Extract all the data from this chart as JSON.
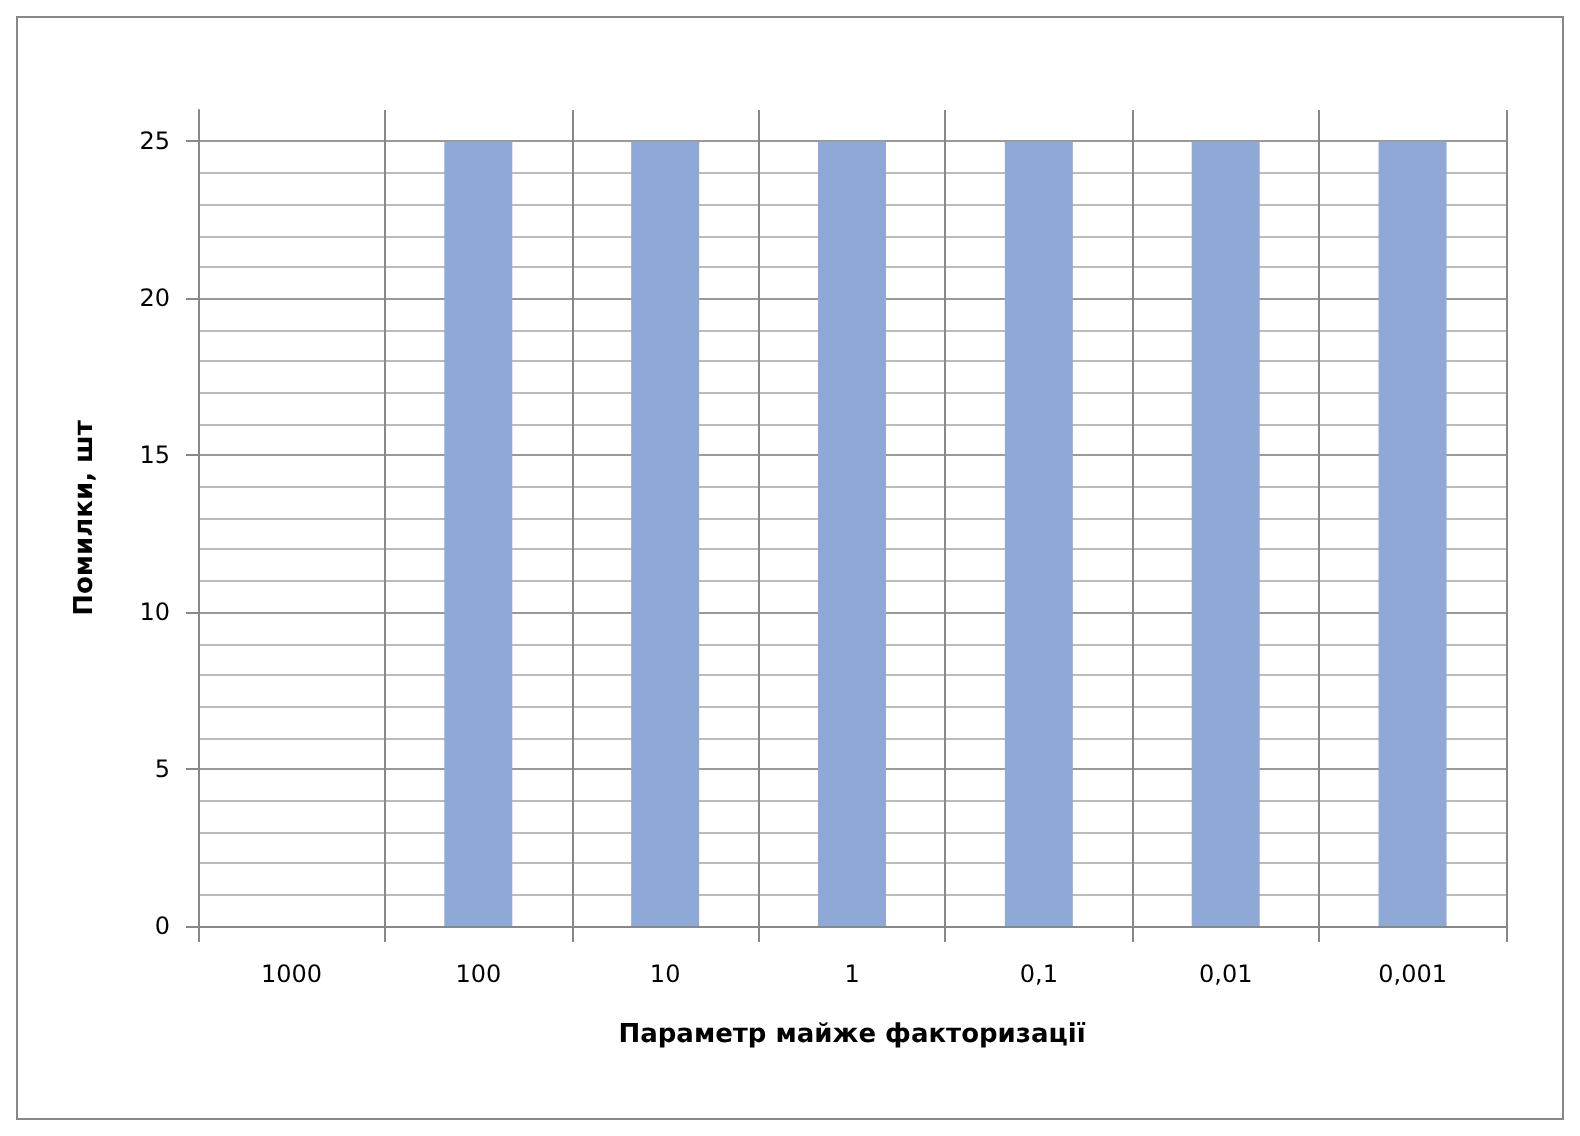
{
  "chart_data": {
    "type": "bar",
    "xlabel": "Параметр майже факторизації",
    "ylabel": "Помилки, шт",
    "categories": [
      "1000",
      "100",
      "10",
      "1",
      "0,1",
      "0,01",
      "0,001"
    ],
    "values": [
      0,
      25,
      25,
      25,
      25,
      25,
      25
    ],
    "color": "#8fa9d6",
    "ylim": [
      0,
      26
    ],
    "yticks": [
      0,
      5,
      10,
      15,
      20,
      25
    ],
    "grid": true
  }
}
